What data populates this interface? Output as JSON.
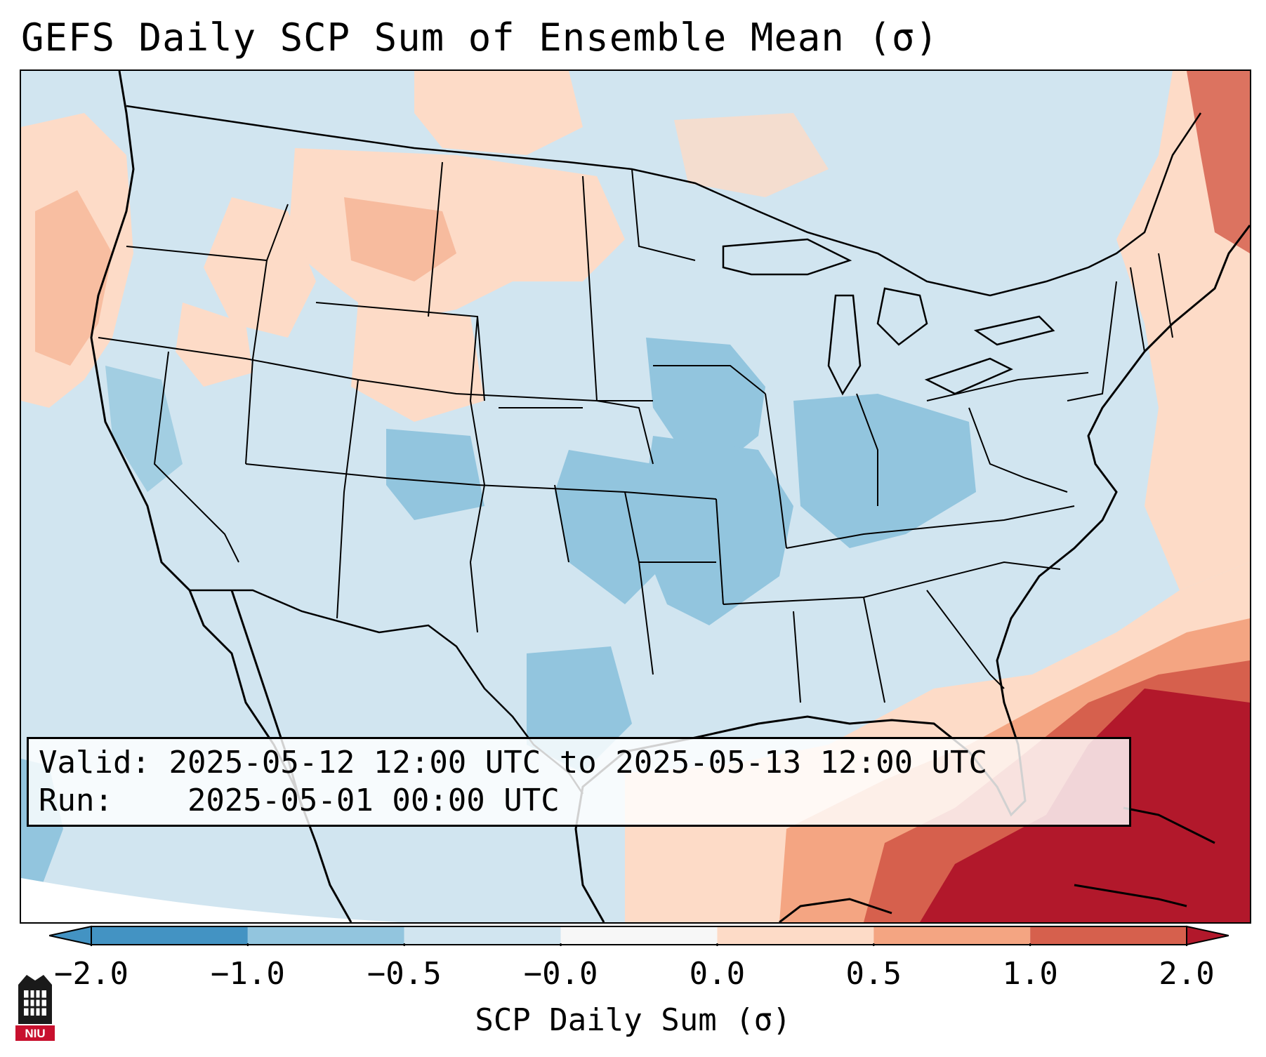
{
  "title": "GEFS Daily SCP Sum of Ensemble Mean (σ)",
  "info": {
    "valid_label": "Valid:",
    "valid_text": "2025-05-12 12:00 UTC to 2025-05-13 12:00 UTC",
    "run_label": "Run:",
    "run_text": "2025-05-01 00:00 UTC"
  },
  "colorbar": {
    "label": "SCP Daily Sum (σ)",
    "ticks": [
      "−2.0",
      "−1.0",
      "−0.5",
      "−0.0",
      "0.0",
      "0.5",
      "1.0",
      "2.0"
    ],
    "colors": [
      "#4393c3",
      "#92c5de",
      "#d1e5f0",
      "#f7f7f7",
      "#fddbc7",
      "#f4a582",
      "#d6604d",
      "#b2182b"
    ],
    "extend": "both"
  },
  "logo": {
    "text": "NIU"
  }
}
